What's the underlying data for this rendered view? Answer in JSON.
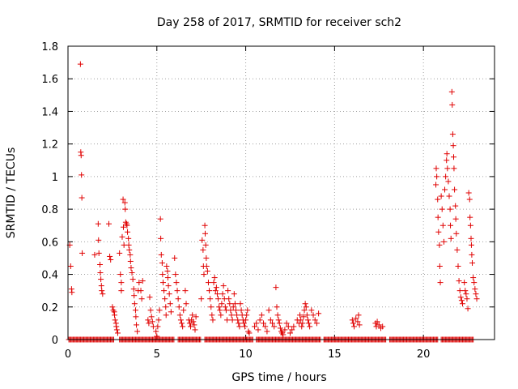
{
  "chart_data": {
    "type": "scatter",
    "title": "Day 258 of 2017, SRMTID for receiver sch2",
    "xlabel": "GPS time / hours",
    "ylabel": "SRMTID / TECUs",
    "xlim": [
      0,
      24
    ],
    "ylim": [
      0,
      1.8
    ],
    "x_ticks": [
      0,
      5,
      10,
      15,
      20
    ],
    "x_tick_labels": [
      "0",
      "5",
      "10",
      "15",
      "20"
    ],
    "y_ticks": [
      0,
      0.2,
      0.4,
      0.6,
      0.8,
      1,
      1.2,
      1.4,
      1.6,
      1.8
    ],
    "y_tick_labels": [
      "0",
      "0.2",
      "0.4",
      "0.6",
      "0.8",
      "1",
      "1.2",
      "1.4",
      "1.6",
      "1.8"
    ],
    "marker": "+",
    "series": [
      {
        "name": "SRMTID",
        "color": "#e00000",
        "points": [
          [
            0.1,
            0.58
          ],
          [
            0.15,
            0.45
          ],
          [
            0.2,
            0.31
          ],
          [
            0.22,
            0.29
          ],
          [
            0.7,
            1.69
          ],
          [
            0.72,
            1.15
          ],
          [
            0.74,
            1.13
          ],
          [
            0.76,
            1.01
          ],
          [
            0.78,
            0.87
          ],
          [
            0.8,
            0.53
          ],
          [
            1.5,
            0.52
          ],
          [
            1.7,
            0.71
          ],
          [
            1.72,
            0.61
          ],
          [
            1.74,
            0.53
          ],
          [
            1.8,
            0.46
          ],
          [
            1.82,
            0.41
          ],
          [
            1.85,
            0.37
          ],
          [
            1.88,
            0.33
          ],
          [
            1.9,
            0.3
          ],
          [
            1.95,
            0.28
          ],
          [
            2.3,
            0.71
          ],
          [
            2.35,
            0.51
          ],
          [
            2.4,
            0.49
          ],
          [
            2.5,
            0.2
          ],
          [
            2.55,
            0.18
          ],
          [
            2.6,
            0.17
          ],
          [
            2.62,
            0.15
          ],
          [
            2.65,
            0.12
          ],
          [
            2.7,
            0.1
          ],
          [
            2.72,
            0.08
          ],
          [
            2.75,
            0.06
          ],
          [
            2.8,
            0.04
          ],
          [
            2.9,
            0.53
          ],
          [
            2.95,
            0.4
          ],
          [
            3.0,
            0.35
          ],
          [
            3.0,
            0.3
          ],
          [
            3.05,
            0.63
          ],
          [
            3.1,
            0.86
          ],
          [
            3.12,
            0.69
          ],
          [
            3.15,
            0.58
          ],
          [
            3.2,
            0.84
          ],
          [
            3.22,
            0.8
          ],
          [
            3.25,
            0.72
          ],
          [
            3.3,
            0.71
          ],
          [
            3.32,
            0.7
          ],
          [
            3.35,
            0.66
          ],
          [
            3.4,
            0.62
          ],
          [
            3.42,
            0.58
          ],
          [
            3.45,
            0.55
          ],
          [
            3.5,
            0.52
          ],
          [
            3.52,
            0.48
          ],
          [
            3.55,
            0.44
          ],
          [
            3.6,
            0.41
          ],
          [
            3.65,
            0.37
          ],
          [
            3.7,
            0.31
          ],
          [
            3.72,
            0.27
          ],
          [
            3.75,
            0.22
          ],
          [
            3.8,
            0.18
          ],
          [
            3.82,
            0.14
          ],
          [
            3.85,
            0.09
          ],
          [
            3.9,
            0.05
          ],
          [
            3.95,
            0.3
          ],
          [
            4.0,
            0.35
          ],
          [
            4.1,
            0.3
          ],
          [
            4.15,
            0.25
          ],
          [
            4.2,
            0.36
          ],
          [
            4.5,
            0.12
          ],
          [
            4.55,
            0.1
          ],
          [
            4.6,
            0.26
          ],
          [
            4.65,
            0.18
          ],
          [
            4.7,
            0.14
          ],
          [
            4.75,
            0.11
          ],
          [
            4.8,
            0.08
          ],
          [
            4.95,
            0.05
          ],
          [
            5.0,
            0.02
          ],
          [
            5.05,
            0.08
          ],
          [
            5.1,
            0.12
          ],
          [
            5.15,
            0.18
          ],
          [
            5.2,
            0.74
          ],
          [
            5.22,
            0.62
          ],
          [
            5.25,
            0.52
          ],
          [
            5.3,
            0.47
          ],
          [
            5.32,
            0.4
          ],
          [
            5.35,
            0.35
          ],
          [
            5.4,
            0.3
          ],
          [
            5.45,
            0.25
          ],
          [
            5.5,
            0.2
          ],
          [
            5.52,
            0.15
          ],
          [
            5.55,
            0.45
          ],
          [
            5.6,
            0.42
          ],
          [
            5.62,
            0.38
          ],
          [
            5.65,
            0.33
          ],
          [
            5.7,
            0.28
          ],
          [
            5.75,
            0.22
          ],
          [
            5.8,
            0.17
          ],
          [
            6.0,
            0.5
          ],
          [
            6.05,
            0.4
          ],
          [
            6.1,
            0.35
          ],
          [
            6.15,
            0.3
          ],
          [
            6.2,
            0.25
          ],
          [
            6.25,
            0.2
          ],
          [
            6.3,
            0.15
          ],
          [
            6.35,
            0.12
          ],
          [
            6.4,
            0.1
          ],
          [
            6.45,
            0.08
          ],
          [
            6.5,
            0.18
          ],
          [
            6.6,
            0.3
          ],
          [
            6.65,
            0.22
          ],
          [
            6.8,
            0.12
          ],
          [
            6.85,
            0.1
          ],
          [
            6.9,
            0.08
          ],
          [
            6.95,
            0.12
          ],
          [
            7.0,
            0.15
          ],
          [
            7.05,
            0.11
          ],
          [
            7.1,
            0.09
          ],
          [
            7.15,
            0.06
          ],
          [
            7.2,
            0.14
          ],
          [
            7.5,
            0.25
          ],
          [
            7.55,
            0.61
          ],
          [
            7.6,
            0.55
          ],
          [
            7.62,
            0.45
          ],
          [
            7.65,
            0.4
          ],
          [
            7.7,
            0.7
          ],
          [
            7.72,
            0.65
          ],
          [
            7.75,
            0.58
          ],
          [
            7.78,
            0.5
          ],
          [
            7.8,
            0.45
          ],
          [
            7.85,
            0.42
          ],
          [
            7.9,
            0.35
          ],
          [
            7.95,
            0.3
          ],
          [
            8.0,
            0.25
          ],
          [
            8.05,
            0.2
          ],
          [
            8.1,
            0.15
          ],
          [
            8.15,
            0.12
          ],
          [
            8.2,
            0.35
          ],
          [
            8.25,
            0.38
          ],
          [
            8.3,
            0.3
          ],
          [
            8.35,
            0.32
          ],
          [
            8.4,
            0.28
          ],
          [
            8.45,
            0.25
          ],
          [
            8.5,
            0.2
          ],
          [
            8.55,
            0.18
          ],
          [
            8.6,
            0.15
          ],
          [
            8.65,
            0.22
          ],
          [
            8.7,
            0.28
          ],
          [
            8.75,
            0.33
          ],
          [
            8.8,
            0.25
          ],
          [
            8.85,
            0.2
          ],
          [
            8.9,
            0.18
          ],
          [
            8.95,
            0.12
          ],
          [
            9.0,
            0.3
          ],
          [
            9.05,
            0.25
          ],
          [
            9.1,
            0.22
          ],
          [
            9.15,
            0.18
          ],
          [
            9.2,
            0.15
          ],
          [
            9.25,
            0.12
          ],
          [
            9.3,
            0.2
          ],
          [
            9.35,
            0.28
          ],
          [
            9.4,
            0.22
          ],
          [
            9.45,
            0.18
          ],
          [
            9.5,
            0.15
          ],
          [
            9.55,
            0.12
          ],
          [
            9.6,
            0.1
          ],
          [
            9.65,
            0.08
          ],
          [
            9.7,
            0.22
          ],
          [
            9.75,
            0.18
          ],
          [
            9.8,
            0.15
          ],
          [
            9.85,
            0.12
          ],
          [
            9.9,
            0.1
          ],
          [
            9.95,
            0.08
          ],
          [
            10.0,
            0.12
          ],
          [
            10.05,
            0.15
          ],
          [
            10.1,
            0.18
          ],
          [
            10.15,
            0.05
          ],
          [
            10.2,
            0.04
          ],
          [
            10.5,
            0.08
          ],
          [
            10.6,
            0.1
          ],
          [
            10.7,
            0.06
          ],
          [
            10.8,
            0.12
          ],
          [
            10.9,
            0.15
          ],
          [
            11.0,
            0.1
          ],
          [
            11.1,
            0.08
          ],
          [
            11.2,
            0.05
          ],
          [
            11.3,
            0.18
          ],
          [
            11.4,
            0.12
          ],
          [
            11.5,
            0.1
          ],
          [
            11.6,
            0.08
          ],
          [
            11.7,
            0.32
          ],
          [
            11.75,
            0.2
          ],
          [
            11.8,
            0.15
          ],
          [
            11.85,
            0.12
          ],
          [
            11.9,
            0.1
          ],
          [
            11.95,
            0.07
          ],
          [
            12.0,
            0.05
          ],
          [
            12.05,
            0.04
          ],
          [
            12.1,
            0.03
          ],
          [
            12.2,
            0.06
          ],
          [
            12.3,
            0.1
          ],
          [
            12.4,
            0.08
          ],
          [
            12.5,
            0.04
          ],
          [
            12.6,
            0.06
          ],
          [
            12.7,
            0.08
          ],
          [
            12.9,
            0.12
          ],
          [
            13.0,
            0.1
          ],
          [
            13.05,
            0.15
          ],
          [
            13.1,
            0.12
          ],
          [
            13.15,
            0.08
          ],
          [
            13.2,
            0.1
          ],
          [
            13.25,
            0.14
          ],
          [
            13.3,
            0.18
          ],
          [
            13.35,
            0.22
          ],
          [
            13.4,
            0.2
          ],
          [
            13.45,
            0.15
          ],
          [
            13.5,
            0.12
          ],
          [
            13.55,
            0.1
          ],
          [
            13.6,
            0.08
          ],
          [
            13.7,
            0.18
          ],
          [
            13.8,
            0.15
          ],
          [
            13.9,
            0.12
          ],
          [
            14.0,
            0.1
          ],
          [
            14.1,
            0.16
          ],
          [
            16.0,
            0.12
          ],
          [
            16.05,
            0.1
          ],
          [
            16.1,
            0.08
          ],
          [
            16.2,
            0.13
          ],
          [
            16.3,
            0.11
          ],
          [
            16.35,
            0.15
          ],
          [
            16.4,
            0.09
          ],
          [
            17.3,
            0.1
          ],
          [
            17.35,
            0.08
          ],
          [
            17.4,
            0.11
          ],
          [
            17.5,
            0.09
          ],
          [
            17.6,
            0.07
          ],
          [
            17.7,
            0.08
          ],
          [
            20.7,
            0.95
          ],
          [
            20.72,
            1.05
          ],
          [
            20.75,
            1.0
          ],
          [
            20.8,
            0.86
          ],
          [
            20.82,
            0.75
          ],
          [
            20.85,
            0.66
          ],
          [
            20.9,
            0.58
          ],
          [
            20.92,
            0.45
          ],
          [
            20.95,
            0.35
          ],
          [
            21.0,
            0.88
          ],
          [
            21.05,
            0.8
          ],
          [
            21.1,
            0.7
          ],
          [
            21.15,
            0.6
          ],
          [
            21.2,
            0.92
          ],
          [
            21.25,
            1.0
          ],
          [
            21.3,
            1.1
          ],
          [
            21.32,
            1.14
          ],
          [
            21.35,
            1.05
          ],
          [
            21.4,
            0.97
          ],
          [
            21.45,
            0.88
          ],
          [
            21.5,
            0.8
          ],
          [
            21.52,
            0.7
          ],
          [
            21.55,
            0.62
          ],
          [
            21.6,
            1.52
          ],
          [
            21.62,
            1.44
          ],
          [
            21.65,
            1.26
          ],
          [
            21.68,
            1.19
          ],
          [
            21.7,
            1.12
          ],
          [
            21.72,
            1.05
          ],
          [
            21.75,
            0.92
          ],
          [
            21.8,
            0.82
          ],
          [
            21.82,
            0.74
          ],
          [
            21.85,
            0.65
          ],
          [
            21.9,
            0.55
          ],
          [
            21.95,
            0.45
          ],
          [
            22.0,
            0.36
          ],
          [
            22.05,
            0.3
          ],
          [
            22.1,
            0.26
          ],
          [
            22.15,
            0.24
          ],
          [
            22.2,
            0.22
          ],
          [
            22.3,
            0.35
          ],
          [
            22.35,
            0.3
          ],
          [
            22.4,
            0.28
          ],
          [
            22.45,
            0.25
          ],
          [
            22.5,
            0.19
          ],
          [
            22.55,
            0.9
          ],
          [
            22.6,
            0.86
          ],
          [
            22.62,
            0.75
          ],
          [
            22.65,
            0.7
          ],
          [
            22.68,
            0.62
          ],
          [
            22.7,
            0.58
          ],
          [
            22.72,
            0.52
          ],
          [
            22.75,
            0.47
          ],
          [
            22.8,
            0.38
          ],
          [
            22.85,
            0.35
          ],
          [
            22.9,
            0.31
          ],
          [
            22.95,
            0.28
          ],
          [
            23.0,
            0.25
          ]
        ],
        "zero_segments": [
          [
            0.05,
            2.6
          ],
          [
            2.9,
            6.0
          ],
          [
            6.2,
            7.5
          ],
          [
            7.7,
            10.4
          ],
          [
            10.6,
            14.2
          ],
          [
            14.4,
            17.9
          ],
          [
            18.1,
            20.8
          ],
          [
            21.0,
            22.8
          ]
        ]
      }
    ]
  }
}
